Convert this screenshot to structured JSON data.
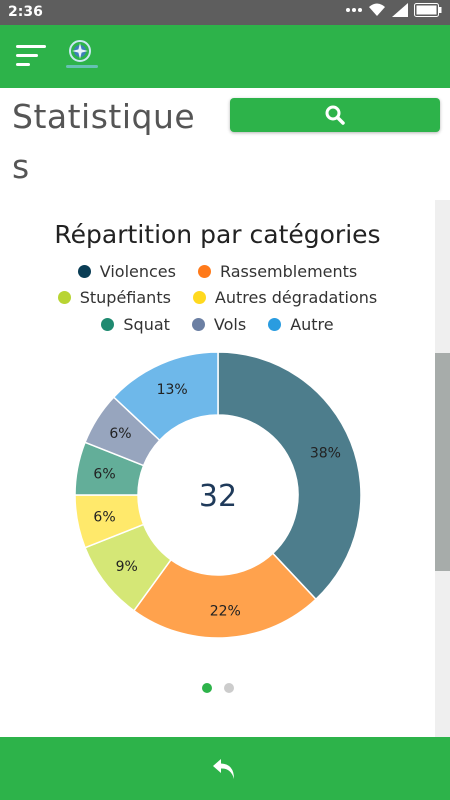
{
  "status_bar": {
    "time": "2:36",
    "icons": [
      "dots-icon",
      "wifi-icon",
      "signal-icon",
      "battery-icon"
    ]
  },
  "app_bar": {
    "menu_icon": "hamburger-menu-icon",
    "logo_icon": "compass-logo-icon",
    "color": "#2db34a"
  },
  "page": {
    "title": "Statistiques"
  },
  "search": {
    "icon": "search-icon"
  },
  "chart_data": {
    "type": "pie",
    "title": "Répartition par catégories",
    "center_label": "32",
    "legend_position": "top",
    "categories": [
      "Violences",
      "Rassemblements",
      "Stupéfiants",
      "Autres dégradations",
      "Squat",
      "Vols",
      "Autre"
    ],
    "legend_colors": [
      "#0a3d55",
      "#ff7a1a",
      "#b8d433",
      "#ffd91f",
      "#1f8a70",
      "#6b7fa3",
      "#2a9ce0"
    ],
    "slices": [
      {
        "label": "38%",
        "value": 38,
        "color": "#4d7d8c"
      },
      {
        "label": "22%",
        "value": 22,
        "color": "#ffa24d"
      },
      {
        "label": "9%",
        "value": 9,
        "color": "#d5e776"
      },
      {
        "label": "6%",
        "value": 6,
        "color": "#ffe96b"
      },
      {
        "label": "6%",
        "value": 6,
        "color": "#63ae99"
      },
      {
        "label": "6%",
        "value": 6,
        "color": "#97a5be"
      },
      {
        "label": "13%",
        "value": 13,
        "color": "#6eb8ea"
      }
    ]
  },
  "pager": {
    "pages": 2,
    "active": 0,
    "active_color": "#2db34a",
    "inactive_color": "#cccccc"
  },
  "bottom_bar": {
    "back_icon": "back-arrow-icon"
  }
}
